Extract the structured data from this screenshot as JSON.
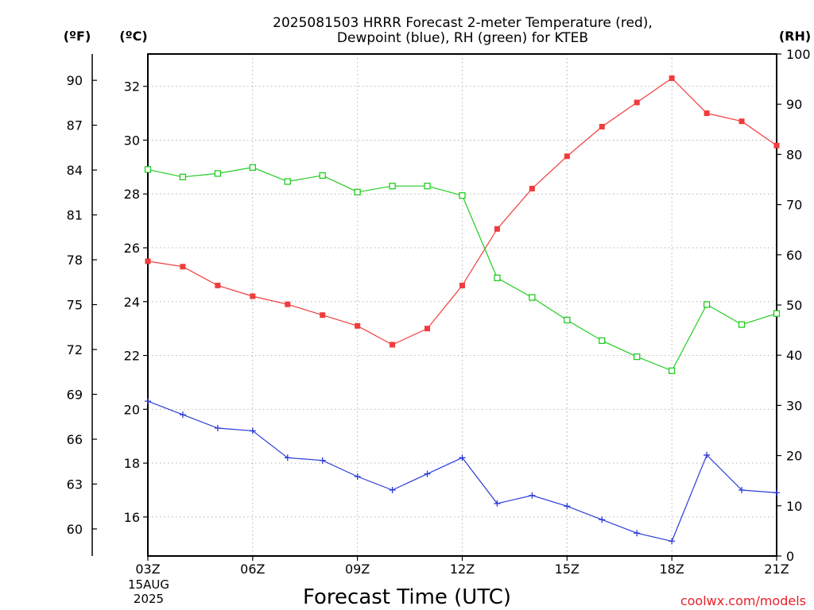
{
  "chart_data": {
    "type": "line",
    "title_line1": "2025081503 HRRR Forecast 2-meter Temperature (red),",
    "title_line2": "Dewpoint (blue), RH (green) for KTEB",
    "xlabel": "Forecast Time (UTC)",
    "credit": "coolwx.com/models",
    "units": {
      "fahrenheit": "(ºF)",
      "celsius": "(ºC)",
      "rh": "(RH)"
    },
    "x_tick_labels": [
      "03Z",
      "06Z",
      "09Z",
      "12Z",
      "15Z",
      "18Z",
      "21Z"
    ],
    "x_date_label": [
      "15AUG",
      "2025"
    ],
    "x_hours": [
      3,
      4,
      5,
      6,
      7,
      8,
      9,
      10,
      11,
      12,
      13,
      14,
      15,
      16,
      17,
      18,
      19,
      20,
      21
    ],
    "xlim": [
      3,
      21
    ],
    "celsius_ticks": [
      16,
      18,
      20,
      22,
      24,
      26,
      28,
      30,
      32
    ],
    "fahrenheit_ticks": [
      60,
      63,
      66,
      69,
      72,
      75,
      78,
      81,
      84,
      87,
      90
    ],
    "rh_ticks": [
      0,
      10,
      20,
      30,
      40,
      50,
      60,
      70,
      80,
      90,
      100
    ],
    "ylim_celsius": [
      14.55,
      33.2
    ],
    "ylim_rh": [
      0,
      100
    ],
    "grid": true,
    "series": [
      {
        "name": "Temperature",
        "axis": "celsius",
        "color": "#f03c3c",
        "marker": "filled-square",
        "values": [
          25.5,
          25.3,
          24.6,
          24.2,
          23.9,
          23.5,
          23.1,
          22.4,
          23.0,
          24.6,
          26.7,
          28.2,
          29.4,
          30.5,
          31.4,
          32.3,
          31.0,
          30.7,
          29.8
        ]
      },
      {
        "name": "Dewpoint",
        "axis": "celsius",
        "color": "#2a3bd8",
        "marker": "plus",
        "values": [
          20.3,
          19.8,
          19.3,
          19.2,
          18.2,
          18.1,
          17.5,
          17.0,
          17.6,
          18.2,
          16.5,
          16.8,
          16.4,
          15.9,
          15.4,
          15.1,
          18.3,
          17.0,
          16.9
        ]
      },
      {
        "name": "RH",
        "axis": "rh",
        "color": "#22cc22",
        "marker": "open-square",
        "values": [
          77.0,
          75.5,
          76.2,
          77.4,
          74.6,
          75.8,
          72.5,
          73.7,
          73.7,
          71.8,
          55.4,
          51.5,
          47.0,
          42.9,
          39.7,
          36.9,
          50.1,
          46.1,
          48.3
        ]
      }
    ]
  }
}
